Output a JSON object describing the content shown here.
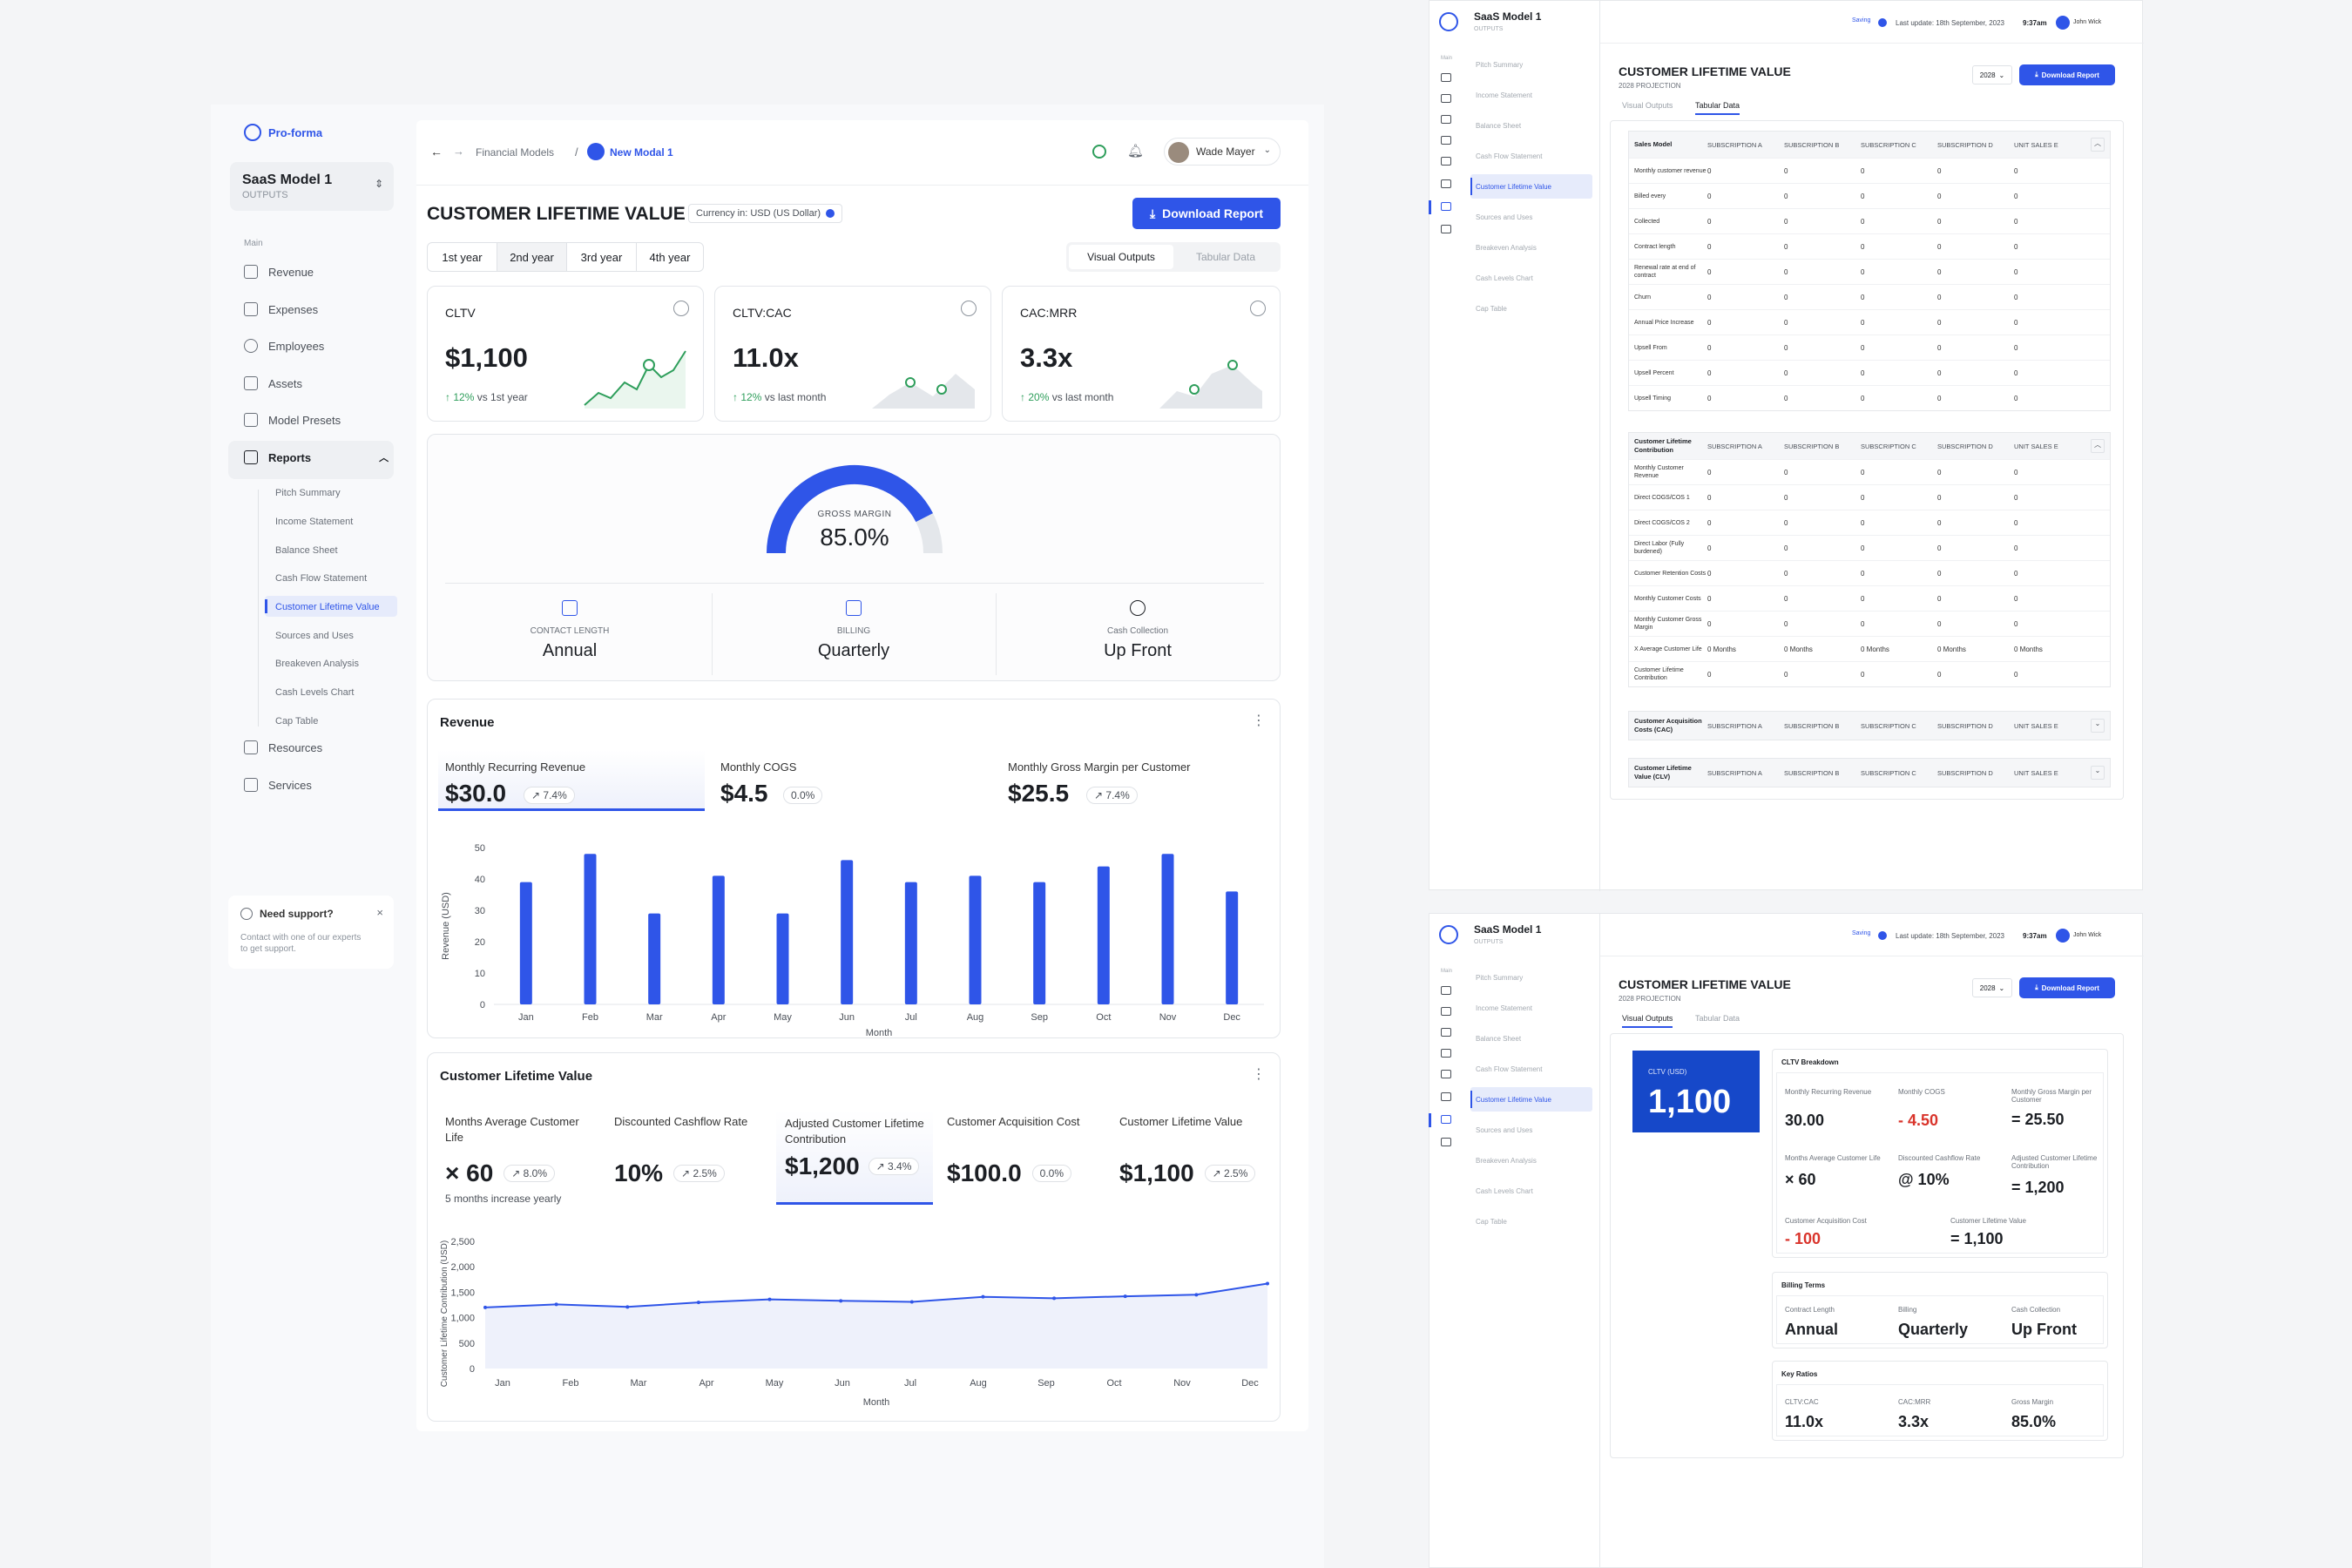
{
  "app": {
    "brand": "Pro-forma",
    "model_name": "SaaS Model 1",
    "model_sub": "OUTPUTS"
  },
  "sidebar": {
    "section": "Main",
    "items": [
      {
        "label": "Revenue"
      },
      {
        "label": "Expenses"
      },
      {
        "label": "Employees"
      },
      {
        "label": "Assets"
      },
      {
        "label": "Model Presets"
      },
      {
        "label": "Reports"
      }
    ],
    "reports_sub": [
      "Pitch Summary",
      "Income Statement",
      "Balance Sheet",
      "Cash Flow Statement",
      "Customer Lifetime Value",
      "Sources and Uses",
      "Breakeven Analysis",
      "Cash Levels Chart",
      "Cap Table"
    ],
    "after": [
      {
        "label": "Resources"
      },
      {
        "label": "Services"
      }
    ],
    "support": {
      "title": "Need support?",
      "text": "Contact with one of our experts to get support."
    }
  },
  "header": {
    "crumb1": "Financial Models",
    "crumb_sep": "/",
    "crumb2": "New Modal 1",
    "user": "Wade Mayer"
  },
  "page": {
    "title": "CUSTOMER LIFETIME VALUE",
    "currency": "Currency in: USD (US Dollar)",
    "download": "Download Report",
    "years": [
      "1st year",
      "2nd year",
      "3rd year",
      "4th year"
    ],
    "views": [
      "Visual Outputs",
      "Tabular Data"
    ]
  },
  "kpis": [
    {
      "label": "CLTV",
      "value": "$1,100",
      "delta": "12%",
      "note": "vs 1st year"
    },
    {
      "label": "CLTV:CAC",
      "value": "11.0x",
      "delta": "12%",
      "note": "vs last month"
    },
    {
      "label": "CAC:MRR",
      "value": "3.3x",
      "delta": "20%",
      "note": "vs last month"
    }
  ],
  "gauge": {
    "label": "GROSS MARGIN",
    "value": "85.0%",
    "fraction": 0.85
  },
  "terms": [
    {
      "label": "CONTACT LENGTH",
      "value": "Annual"
    },
    {
      "label": "BILLING",
      "value": "Quarterly"
    },
    {
      "label": "Cash Collection",
      "value": "Up Front"
    }
  ],
  "revenue": {
    "title": "Revenue",
    "metrics": [
      {
        "label": "Monthly Recurring Revenue",
        "value": "$30.0",
        "delta": "7.4%"
      },
      {
        "label": "Monthly COGS",
        "value": "$4.5",
        "delta": "0.0%"
      },
      {
        "label": "Monthly Gross Margin per Customer",
        "value": "$25.5",
        "delta": "7.4%"
      }
    ]
  },
  "cltv": {
    "title": "Customer Lifetime Value",
    "metrics": [
      {
        "label": "Months Average Customer Life",
        "value": "× 60",
        "delta": "8.0%",
        "note": "5 months increase yearly"
      },
      {
        "label": "Discounted Cashflow Rate",
        "value": "10%",
        "delta": "2.5%",
        "note": ""
      },
      {
        "label": "Adjusted Customer Lifetime Contribution",
        "value": "$1,200",
        "delta": "3.4%",
        "note": ""
      },
      {
        "label": "Customer Acquisition Cost",
        "value": "$100.0",
        "delta": "0.0%",
        "note": ""
      },
      {
        "label": "Customer Lifetime Value",
        "value": "$1,100",
        "delta": "2.5%",
        "note": ""
      }
    ]
  },
  "chart_data": [
    {
      "type": "bar",
      "title": "Revenue",
      "xlabel": "Month",
      "ylabel": "Revenue (USD)",
      "ylim": [
        0,
        50
      ],
      "yticks": [
        "0",
        "10",
        "20",
        "30",
        "40",
        "50"
      ],
      "categories": [
        "Jan",
        "Feb",
        "Mar",
        "Apr",
        "May",
        "Jun",
        "Jul",
        "Aug",
        "Sep",
        "Oct",
        "Nov",
        "Dec"
      ],
      "values": [
        39,
        48,
        29,
        41,
        29,
        46,
        39,
        41,
        39,
        44,
        48,
        36
      ]
    },
    {
      "type": "line",
      "title": "Customer Lifetime Value",
      "xlabel": "Month",
      "ylabel": "Customer Lifetime Contribution (USD)",
      "ylim": [
        0,
        2500
      ],
      "yticks": [
        "0",
        "500",
        "1,000",
        "1,500",
        "2,000",
        "2,500"
      ],
      "categories": [
        "Jan",
        "Feb",
        "Mar",
        "Apr",
        "May",
        "Jun",
        "Jul",
        "Aug",
        "Sep",
        "Oct",
        "Nov",
        "Dec"
      ],
      "values": [
        1200,
        1260,
        1210,
        1300,
        1360,
        1330,
        1310,
        1410,
        1380,
        1420,
        1450,
        1670
      ]
    }
  ],
  "right": {
    "model_name": "SaaS Model 1",
    "model_sub": "OUTPUTS",
    "nav_label": "Main",
    "saving": "Saving",
    "last_update": "Last update: 18th September, 2023",
    "time": "9:37am",
    "user": "John Wick",
    "title": "CUSTOMER LIFETIME VALUE",
    "subtitle": "2028 PROJECTION",
    "year": "2028",
    "download": "Download Report",
    "tabs": [
      "Visual Outputs",
      "Tabular Data"
    ],
    "nav": [
      "Pitch Summary",
      "Income Statement",
      "Balance Sheet",
      "Cash Flow Statement",
      "Customer Lifetime Value",
      "Sources and Uses",
      "Breakeven Analysis",
      "Cash Levels Chart",
      "Cap Table"
    ],
    "cols": [
      "SUBSCRIPTION A",
      "SUBSCRIPTION B",
      "SUBSCRIPTION C",
      "SUBSCRIPTION D",
      "UNIT SALES E"
    ],
    "sales_model": {
      "title": "Sales Model",
      "rows": [
        "Monthly customer revenue",
        "Billed every",
        "Collected",
        "Contract length",
        "Renewal rate at end of contract",
        "Churn",
        "Annual Price Increase",
        "Upsell From",
        "Upsell Percent",
        "Upsell Timing"
      ]
    },
    "contribution": {
      "title": "Customer Lifetime Contribution",
      "rows": [
        "Monthly Customer Revenue",
        "Direct COGS/COS 1",
        "Direct COGS/COS 2",
        "Direct Labor (Fully burdened)",
        "Customer Retention Costs",
        "Monthly Customer Costs",
        "Monthly Customer Gross Margin",
        "X Average Customer Life",
        "Customer Lifetime Contribution"
      ]
    },
    "zero": "0",
    "months": "0 Months",
    "cac": {
      "title": "Customer Acquisition Costs (CAC)"
    },
    "clv": {
      "title": "Customer Lifetime Value (CLV)"
    },
    "cltv_box": {
      "label": "CLTV (USD)",
      "value": "1,100"
    },
    "breakdown": {
      "title": "CLTV Breakdown",
      "items": [
        {
          "label": "Monthly Recurring Revenue",
          "value": "30.00"
        },
        {
          "label": "Monthly COGS",
          "value": "- 4.50"
        },
        {
          "label": "Monthly Gross Margin per Customer",
          "value": "= 25.50"
        },
        {
          "label": "Months Average Customer Life",
          "value": "× 60"
        },
        {
          "label": "Discounted Cashflow Rate",
          "value": "@ 10%"
        },
        {
          "label": "Adjusted Customer Lifetime Contribution",
          "value": "= 1,200"
        },
        {
          "label": "Customer Acquisition Cost",
          "value": "- 100"
        },
        {
          "label": "Customer Lifetime Value",
          "value": "= 1,100"
        }
      ]
    },
    "billing": {
      "title": "Billing Terms",
      "items": [
        {
          "label": "Contract Length",
          "value": "Annual"
        },
        {
          "label": "Billing",
          "value": "Quarterly"
        },
        {
          "label": "Cash Collection",
          "value": "Up Front"
        }
      ]
    },
    "ratios": {
      "title": "Key Ratios",
      "items": [
        {
          "label": "CLTV:CAC",
          "value": "11.0x"
        },
        {
          "label": "CAC:MRR",
          "value": "3.3x"
        },
        {
          "label": "Gross Margin",
          "value": "85.0%"
        }
      ]
    }
  },
  "colors": {
    "accent": "#2f55e8",
    "green": "#2e9e5b",
    "red": "#d9342b"
  }
}
